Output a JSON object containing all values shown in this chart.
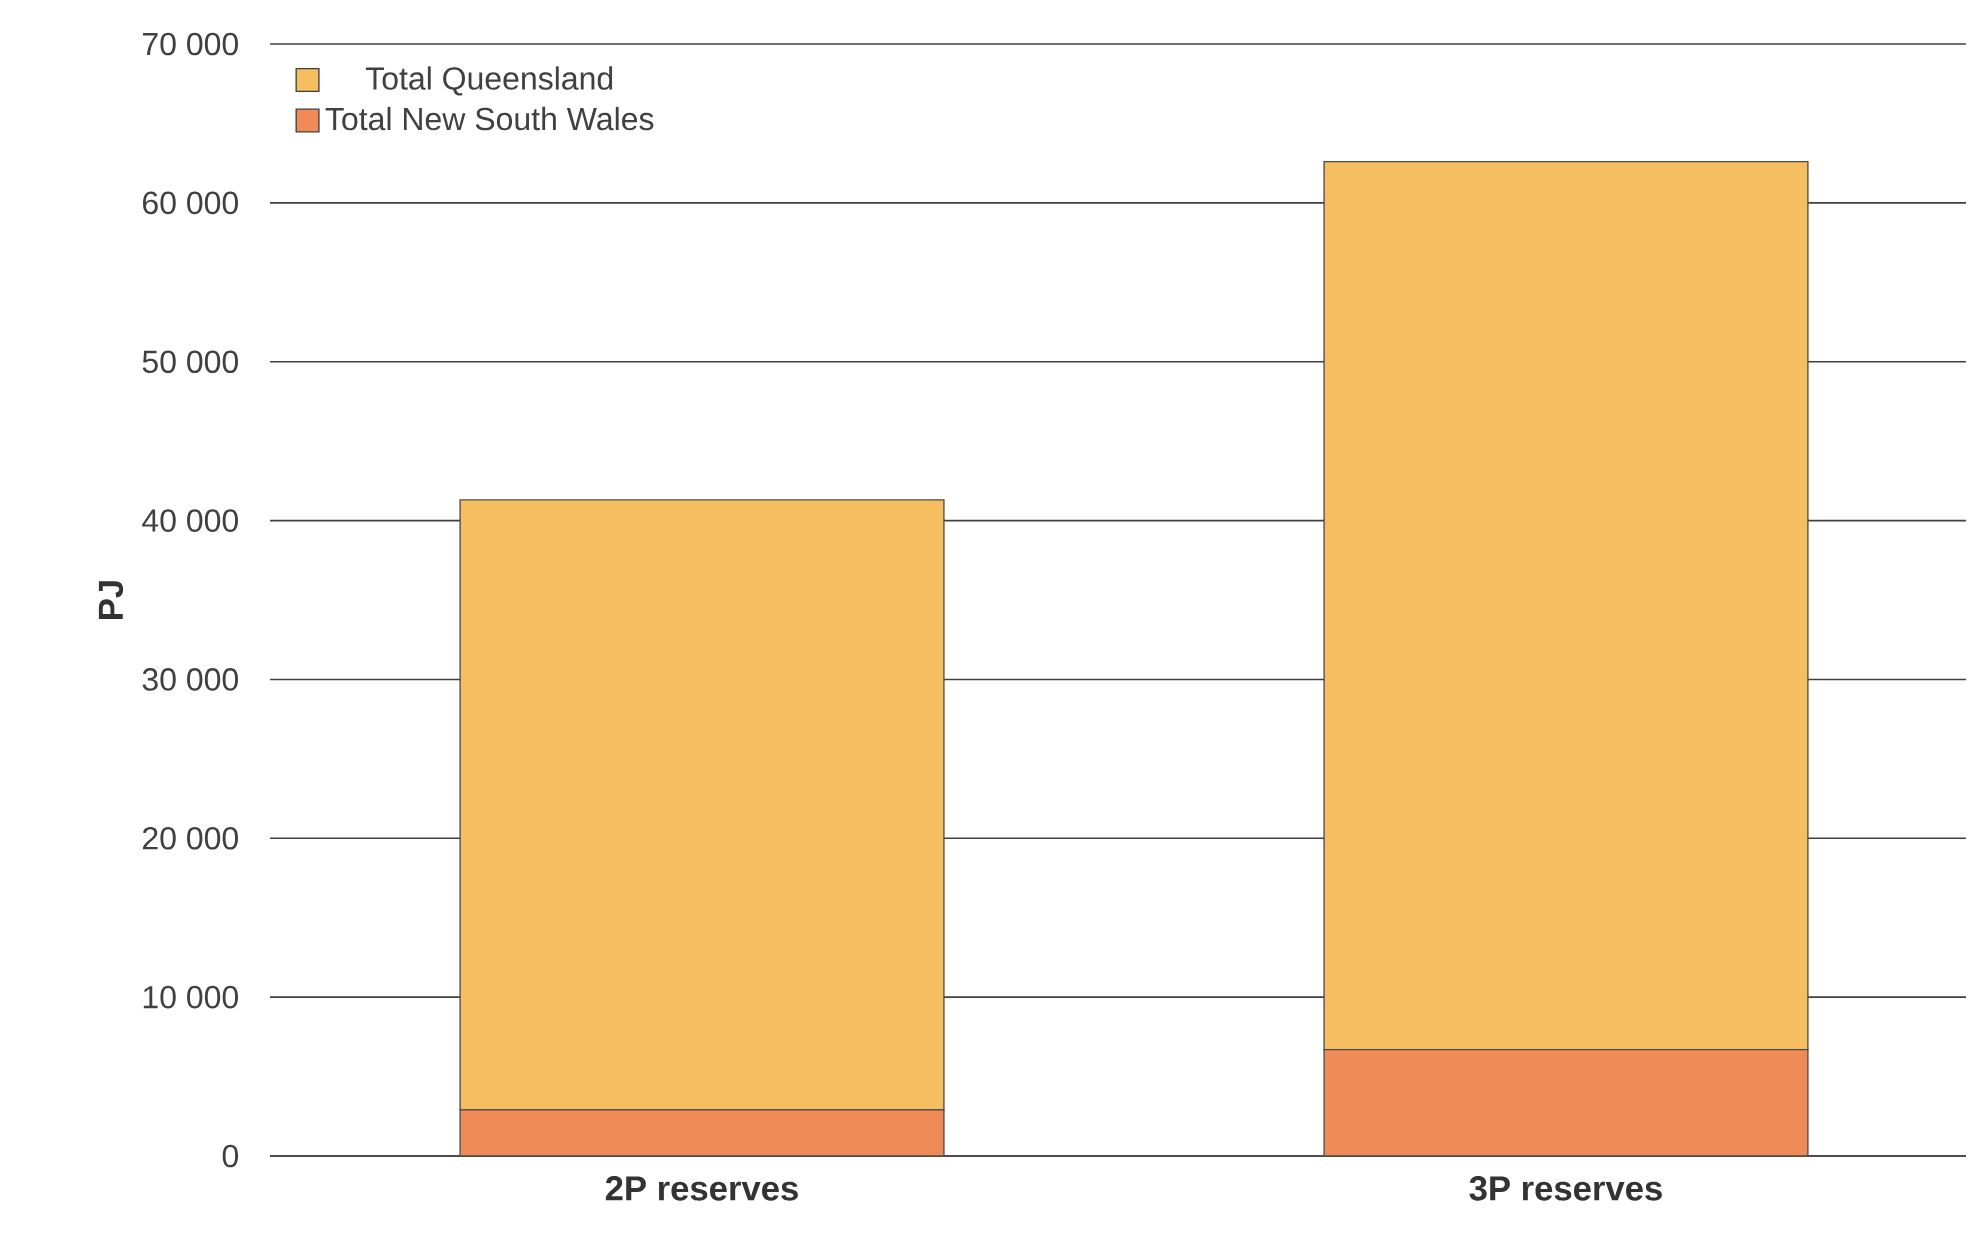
{
  "chart_data": {
    "type": "bar",
    "stacked": true,
    "ylabel": "PJ",
    "categories": [
      "2P reserves",
      "3P reserves"
    ],
    "series": [
      {
        "name": "Total New South Wales",
        "color": "#f08a56",
        "values": [
          2900,
          6700
        ]
      },
      {
        "name": "Total Queensland",
        "color": "#f5be5e",
        "values": [
          38400,
          55900
        ]
      }
    ],
    "ylim": [
      0,
      70000
    ],
    "yticks": [
      {
        "value": 0,
        "label": "0"
      },
      {
        "value": 10000,
        "label": "10 000"
      },
      {
        "value": 20000,
        "label": "20 000"
      },
      {
        "value": 30000,
        "label": "30 000"
      },
      {
        "value": 40000,
        "label": "40 000"
      },
      {
        "value": 50000,
        "label": "50 000"
      },
      {
        "value": 60000,
        "label": "60 000"
      },
      {
        "value": 70000,
        "label": "70 000"
      }
    ],
    "grid": "y",
    "legend": "top left"
  }
}
